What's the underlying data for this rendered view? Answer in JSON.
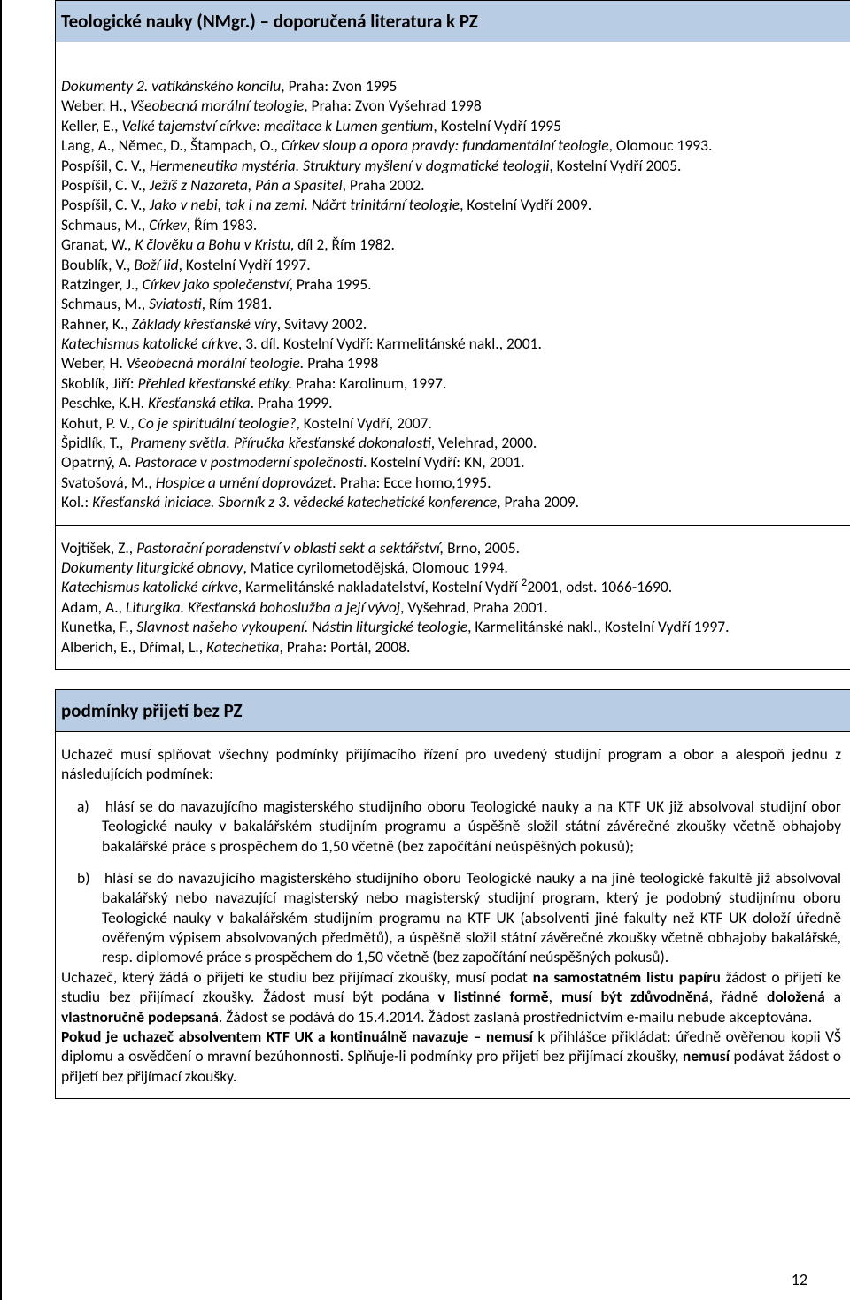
{
  "header1": "Teologické nauky (NMgr.) – doporučená literatura k PZ",
  "lit": {
    "l1": "Dokumenty 2. vatikánského koncilu, Praha: Zvon 1995",
    "l2": "Weber, H., Všeobecná morální teologie, Praha: Zvon Vyšehrad 1998",
    "l3": "Keller, E., Velké tajemství církve: meditace k Lumen gentium, Kostelní Vydří 1995",
    "l4": "Lang, A., Němec, D., Štampach, O., Církev sloup a opora pravdy: fundamentální teologie, Olomouc 1993.",
    "l5": "Pospíšil, C. V., Hermeneutika mystéria. Struktury myšlení v dogmatické teologii, Kostelní Vydří 2005.",
    "l6": "Pospíšil, C. V., Ježíš z Nazareta, Pán a Spasitel, Praha 2002.",
    "l7": "Pospíšil, C. V., Jako v nebi, tak i na zemi. Náčrt trinitární teologie, Kostelní Vydří 2009.",
    "l8": "Schmaus, M., Církev, Řím 1983.",
    "l9": "Granat, W., K člověku a Bohu v Kristu, díl 2, Řím 1982.",
    "l10": "Boublík, V., Boží lid, Kostelní Vydří 1997.",
    "l11": "Ratzinger, J., Církev jako společenství, Praha 1995.",
    "l12": "Schmaus, M., Sviatosti, Rím 1981.",
    "l13": "Rahner, K., Základy křesťanské víry, Svitavy 2002.",
    "l14": "Katechismus katolické církve, 3. díl. Kostelní Vydří: Karmelitánské nakl., 2001.",
    "l15": "Weber, H. Všeobecná morální teologie. Praha 1998",
    "l16": "Skoblík, Jiří: Přehled křesťanské etiky. Praha: Karolinum, 1997.",
    "l17": "Peschke, K.H. Křesťanská etika. Praha 1999.",
    "l18": "Kohut, P. V., Co je spirituální teologie?, Kostelní Vydří, 2007.",
    "l19": "Špidlík, T.,  Prameny světla. Příručka křesťanské dokonalosti, Velehrad, 2000.",
    "l20": "Opatrný, A. Pastorace v postmoderní společnosti. Kostelní Vydří: KN, 2001.",
    "l21": "Svatošová, M., Hospice a umění doprovázet. Praha: Ecce homo,1995.",
    "l22": "Kol.: Křesťanská iniciace. Sborník z 3. vědecké katechetické konference, Praha 2009."
  },
  "lit2": {
    "l1": "Vojtíšek, Z., Pastorační poradenství v oblasti sekt a sektářství, Brno, 2005.",
    "l2": "Dokumenty liturgické obnovy, Matice cyrilometodějská, Olomouc 1994.",
    "l3a": "Katechismus katolické církve",
    "l3b": ", Karmelitánské nakladatelství, Kostelní Vydří ",
    "l3sup": "2",
    "l3c": "2001, odst. 1066-1690.",
    "l4": "Adam, A., Liturgika. Křesťanská bohoslužba a její vývoj, Vyšehrad, Praha 2001.",
    "l5": "Kunetka, F., Slavnost našeho vykoupení. Nástin liturgické teologie, Karmelitánské nakl., Kostelní Vydří 1997.",
    "l6": "Alberich, E., Dřímal, L., Katechetika, Praha: Portál, 2008."
  },
  "header2": "podmínky přijetí bez PZ",
  "cond": {
    "intro": "Uchazeč musí splňovat všechny podmínky přijímacího řízení pro uvedený studijní program a obor a alespoň jednu z následujících podmínek:",
    "a_label": "a)",
    "a_text": "hlásí se do navazujícího magisterského studijního oboru Teologické nauky a na KTF UK již absolvoval studijní obor Teologické nauky v bakalářském studijním programu a úspěšně složil státní závěrečné zkoušky včetně obhajoby bakalářské práce s prospěchem do 1,50 včetně (bez započítání neúspěšných pokusů);",
    "b_label": "b)",
    "b_text": "hlásí se do navazujícího magisterského studijního oboru Teologické nauky a na jiné teologické fakultě již absolvoval bakalářský nebo navazující magisterský nebo magisterský studijní program, který je podobný studijnímu oboru Teologické nauky v bakalářském studijním programu na KTF UK (absolventi jiné fakulty než KTF UK doloží úředně ověřeným výpisem absolvovaných předmětů), a úspěšně složil státní závěrečné zkoušky včetně obhajoby bakalářské, resp. diplomové práce s prospěchem do 1,50 včetně (bez započítání neúspěšných pokusů).",
    "p2_a": "Uchazeč, který žádá o přijetí ke studiu bez přijímací zkoušky, musí podat ",
    "p2_b": "na samostatném listu papíru ",
    "p2_c": "žádost o přijetí ke studiu bez přijímací zkoušky. Žádost musí být podána ",
    "p2_d": "v listinné formě",
    "p2_e": ", ",
    "p2_f": "musí být zdůvodněná",
    "p2_g": ", řádně ",
    "p2_h": "doložená",
    "p2_i": " a ",
    "p2_j": "vlastnoručně podepsaná",
    "p2_k": ". Žádost se podává do 15.4.2014. Žádost zaslaná prostřednictvím e-mailu nebude akceptována.",
    "p3_a": "Pokud je uchazeč absolventem KTF UK a kontinuálně navazuje – nemusí ",
    "p3_b": "k přihlášce přikládat: úředně ověřenou kopii VŠ diplomu a osvědčení o mravní bezúhonnosti. Splňuje-li podmínky pro přijetí bez přijímací zkoušky, ",
    "p3_c": "nemusí ",
    "p3_d": "podávat žádost o přijetí bez přijímací zkoušky."
  },
  "page_number": "12"
}
